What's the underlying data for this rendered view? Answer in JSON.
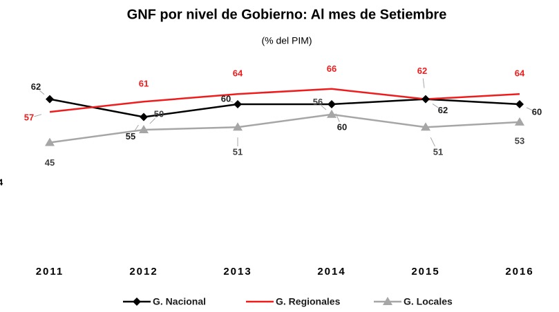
{
  "chart_data": {
    "type": "line",
    "title": "GNF por nivel de Gobierno: Al mes de Setiembre",
    "subtitle": "(% del PIM)",
    "clipped_label": "4",
    "categories": [
      "2011",
      "2012",
      "2013",
      "2014",
      "2015",
      "2016"
    ],
    "series": [
      {
        "name": "G. Nacional",
        "color": "#000000",
        "marker": "diamond",
        "values": [
          62,
          55,
          60,
          60,
          62,
          60
        ]
      },
      {
        "name": "G. Regionales",
        "color": "#ee1c1c",
        "marker": "none",
        "values": [
          57,
          61,
          64,
          66,
          62,
          64
        ]
      },
      {
        "name": "G. Locales",
        "color": "#a6a6a6",
        "marker": "triangle",
        "values": [
          45,
          50,
          51,
          56,
          51,
          53
        ]
      }
    ]
  }
}
